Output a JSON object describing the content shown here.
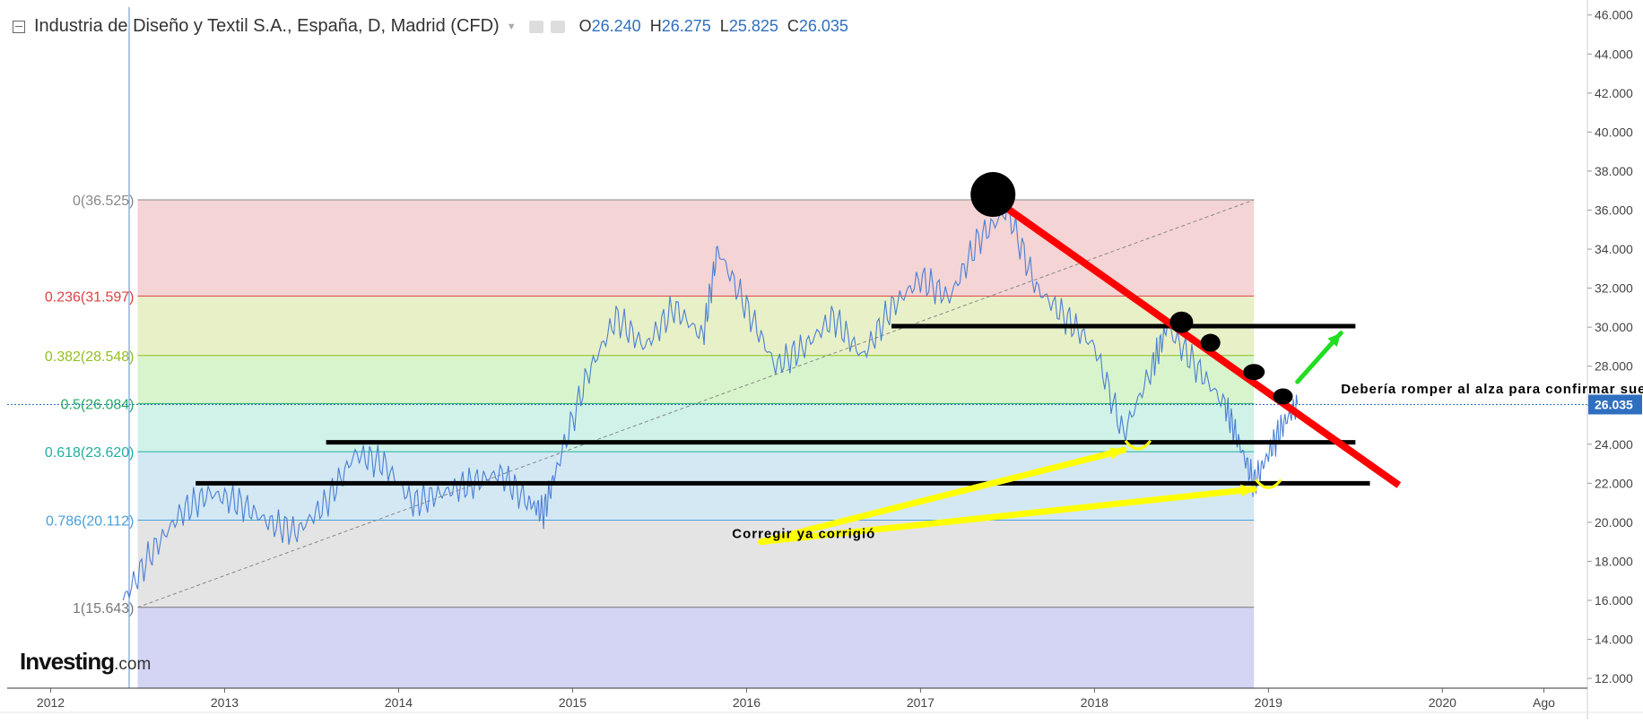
{
  "header": {
    "title": "Industria de Diseño y Textil S.A., España, D, Madrid (CFD)",
    "open_label": "O",
    "open": "26.240",
    "high_label": "H",
    "high": "26.275",
    "low_label": "L",
    "low": "25.825",
    "close_label": "C",
    "close": "26.035"
  },
  "logo": {
    "brand": "Investing",
    "domain": ".com"
  },
  "colors": {
    "price_line": "#4a7fd4",
    "trend_line": "#ff0000",
    "support_lines": "#000000",
    "arrow_up": "#22dd22",
    "arrow_annotation": "#ffff00",
    "last_price_tag": "#2f6fbf"
  },
  "chart_data": {
    "type": "line",
    "y_axis": {
      "range": [
        11.5,
        46.4
      ],
      "ticks": [
        "46.000",
        "44.000",
        "42.000",
        "40.000",
        "38.000",
        "36.000",
        "34.000",
        "32.000",
        "30.000",
        "28.000",
        "26.000",
        "24.000",
        "22.000",
        "20.000",
        "18.000",
        "16.000",
        "14.000",
        "12.000"
      ],
      "position": "right"
    },
    "x_axis": {
      "range": [
        "2011-10",
        "2020-11"
      ],
      "ticks": [
        {
          "label": "2012",
          "date": "2012-01"
        },
        {
          "label": "2013",
          "date": "2013-01"
        },
        {
          "label": "2014",
          "date": "2014-01"
        },
        {
          "label": "2015",
          "date": "2015-01"
        },
        {
          "label": "2016",
          "date": "2016-01"
        },
        {
          "label": "2017",
          "date": "2017-01"
        },
        {
          "label": "2018",
          "date": "2018-01"
        },
        {
          "label": "2019",
          "date": "2019-01"
        },
        {
          "label": "2020",
          "date": "2020-01"
        },
        {
          "label": "Ago",
          "date": "2020-08"
        }
      ]
    },
    "last_price": "26.035",
    "series": [
      {
        "x": [
          "2012-06",
          "2012-08",
          "2012-10",
          "2012-12",
          "2013-02",
          "2013-04",
          "2013-06",
          "2013-08",
          "2013-10",
          "2013-12",
          "2014-02",
          "2014-04",
          "2014-06",
          "2014-08",
          "2014-10",
          "2014-11",
          "2014-12",
          "2015-02",
          "2015-04",
          "2015-06",
          "2015-08",
          "2015-10",
          "2015-11",
          "2016-01",
          "2016-03",
          "2016-05",
          "2016-07",
          "2016-09",
          "2016-11",
          "2017-01",
          "2017-03",
          "2017-05",
          "2017-07",
          "2017-09",
          "2017-11",
          "2018-01",
          "2018-03",
          "2018-05",
          "2018-06",
          "2018-08",
          "2018-10",
          "2018-11",
          "2018-12",
          "2019-01",
          "2019-02",
          "2019-03"
        ],
        "y": [
          16.0,
          18.5,
          20.5,
          21.5,
          21.0,
          20.0,
          19.5,
          21.0,
          23.5,
          23.0,
          21.0,
          21.5,
          22.0,
          22.5,
          21.0,
          20.5,
          23.0,
          27.5,
          30.5,
          29.0,
          31.0,
          29.5,
          34.0,
          31.0,
          28.0,
          29.0,
          30.5,
          28.5,
          31.0,
          32.5,
          31.5,
          34.5,
          36.0,
          32.0,
          30.5,
          29.0,
          24.5,
          28.0,
          30.0,
          28.0,
          26.0,
          24.0,
          22.0,
          23.5,
          25.0,
          26.035
        ]
      }
    ],
    "fibonacci": {
      "start": "2012-07",
      "end": "2018-12",
      "levels": [
        {
          "label": "0(36.525)",
          "value": 36.525,
          "color": "#888888",
          "fill": "#f4d4d4"
        },
        {
          "label": "0.236(31.597)",
          "value": 31.597,
          "color": "#e04040",
          "fill": "#e8f0c8"
        },
        {
          "label": "0.382(28.548)",
          "value": 28.548,
          "color": "#90c020",
          "fill": "#d8f4cc"
        },
        {
          "label": "0.5(26.084)",
          "value": 26.084,
          "color": "#22aa66",
          "fill": "#d0f2e8"
        },
        {
          "label": "0.618(23.620)",
          "value": 23.62,
          "color": "#20b0a0",
          "fill": "#d4e8f4"
        },
        {
          "label": "0.786(20.112)",
          "value": 20.112,
          "color": "#4aa0d8",
          "fill": "#e4e4e4"
        },
        {
          "label": "1(15.643)",
          "value": 15.643,
          "color": "#777777",
          "fill": "#d4d4f4"
        }
      ],
      "below_fill_to": 11.5
    },
    "annotations": [
      {
        "type": "text",
        "text": "Debería romper al alza para confirmar suelo",
        "date": "2019-06",
        "y": 26.6
      },
      {
        "type": "text",
        "text": "Corregir ya corrigió",
        "date": "2015-12",
        "y": 19.2
      }
    ]
  }
}
